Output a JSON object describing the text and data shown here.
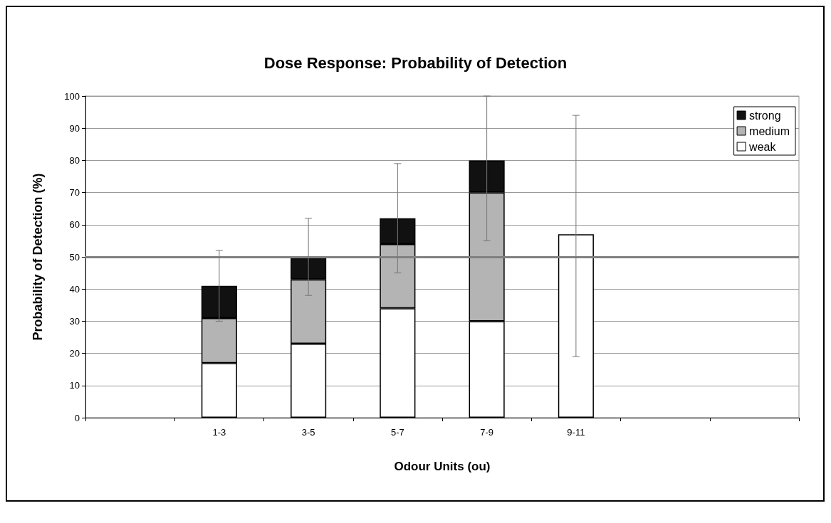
{
  "chart_data": {
    "type": "bar",
    "title": "Dose Response: Probability of Detection",
    "xlabel": "Odour Units (ou)",
    "ylabel": "Probability of Detection (%)",
    "categories": [
      null,
      "1-3",
      "3-5",
      "5-7",
      "7-9",
      "9-11",
      null,
      null
    ],
    "series": [
      {
        "name": "weak",
        "color": "#ffffff",
        "values": [
          null,
          17,
          23,
          34,
          30,
          57,
          null,
          null
        ],
        "errors": [
          null,
          null,
          null,
          null,
          null,
          [
            19,
            94
          ],
          null,
          null
        ]
      },
      {
        "name": "medium",
        "color": "#b4b4b4",
        "values": [
          null,
          14,
          20,
          20,
          40,
          null,
          null,
          null
        ]
      },
      {
        "name": "strong",
        "color": "#111111",
        "values": [
          null,
          10,
          7,
          8,
          10,
          null,
          null,
          null
        ],
        "errors": [
          null,
          [
            30,
            52
          ],
          [
            38,
            62
          ],
          [
            45,
            79
          ],
          [
            55,
            100
          ],
          null,
          null,
          null
        ]
      }
    ],
    "stacked": true,
    "ylim": [
      0,
      100
    ],
    "yticks": [
      0,
      10,
      20,
      30,
      40,
      50,
      60,
      70,
      80,
      90,
      100
    ],
    "grid": "y",
    "legend": "top right",
    "ref_lines": [
      {
        "axis": "y",
        "value": 50,
        "color": "#808080"
      }
    ]
  }
}
